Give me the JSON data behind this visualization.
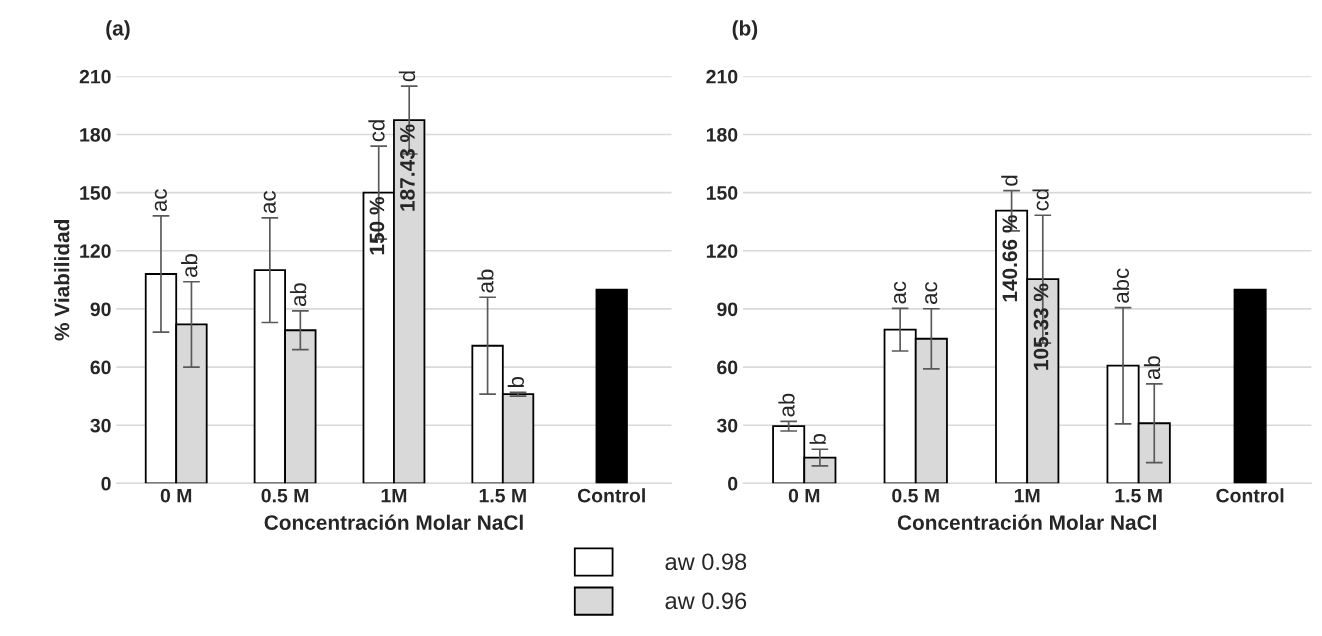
{
  "chart_data": [
    {
      "type": "bar",
      "title": "(a)",
      "xlabel": "Concentración Molar NaCl",
      "ylabel": "% Viabilidad",
      "categories": [
        "0 M",
        "0.5 M",
        "1M",
        "1.5 M",
        "Control"
      ],
      "series": [
        {
          "name": "aw 0.98",
          "color": "#ffffff",
          "values": [
            108,
            110,
            150,
            71,
            null
          ],
          "errors": [
            30,
            27,
            24,
            25,
            null
          ],
          "value_labels": [
            null,
            null,
            "150 %",
            null,
            null
          ]
        },
        {
          "name": "aw 0.96",
          "color": "#d9d9d9",
          "values": [
            82,
            79,
            187.43,
            46,
            null
          ],
          "errors": [
            22,
            10,
            17.5,
            1,
            null
          ],
          "value_labels": [
            null,
            null,
            "187.43 %",
            null,
            null
          ]
        },
        {
          "color": "#000000",
          "values": [
            null,
            null,
            null,
            null,
            100
          ]
        }
      ],
      "annotations": [
        "ac",
        "ab",
        "ac",
        "ab",
        "cd",
        "d",
        "ab",
        "b"
      ],
      "ylim": [
        0,
        210
      ],
      "yticks": [
        0,
        30,
        60,
        90,
        120,
        150,
        180,
        210
      ],
      "grid": "y",
      "legend": "bottom"
    },
    {
      "type": "bar",
      "title": "(b)",
      "xlabel": "Concentración Molar NaCl",
      "categories": [
        "0 M",
        "0.5 M",
        "1M",
        "1.5 M",
        "Control"
      ],
      "series": [
        {
          "name": "aw 0.98",
          "color": "#ffffff",
          "values": [
            29.5,
            79.3,
            140.66,
            60.7,
            null
          ],
          "errors": [
            2.5,
            11,
            10.4,
            30,
            null
          ],
          "value_labels": [
            null,
            null,
            "140.66 %",
            null,
            null
          ]
        },
        {
          "name": "aw 0.96",
          "color": "#d9d9d9",
          "values": [
            13.3,
            74.6,
            105.33,
            31,
            null
          ],
          "errors": [
            4.3,
            15.5,
            33,
            20.3,
            null
          ],
          "value_labels": [
            null,
            null,
            "105.33 %",
            null,
            null
          ]
        },
        {
          "color": "#000000",
          "values": [
            null,
            null,
            null,
            null,
            100
          ]
        }
      ],
      "annotations": [
        "ab",
        "b",
        "ac",
        "ac",
        "d",
        "cd",
        "abc",
        "ab"
      ],
      "ylim": [
        0,
        210
      ],
      "yticks": [
        0,
        30,
        60,
        90,
        120,
        150,
        180,
        210
      ],
      "grid": "y"
    }
  ]
}
